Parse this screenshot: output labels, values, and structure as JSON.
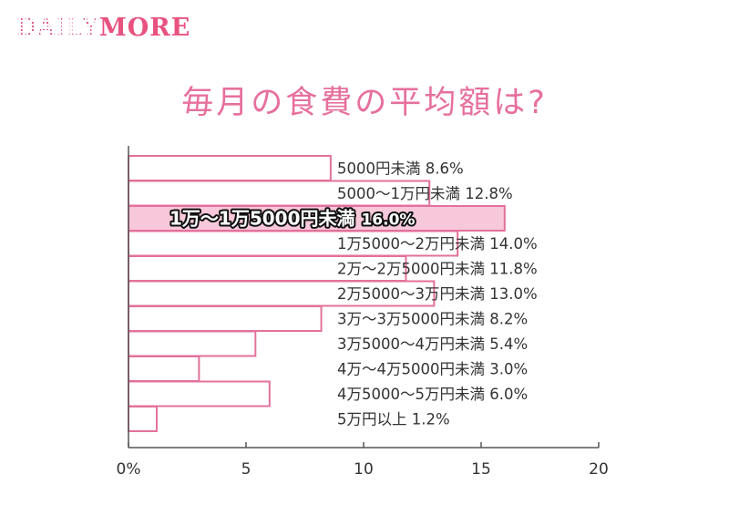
{
  "logo": {
    "daily": "DAILY",
    "more": "MORE"
  },
  "chart_data": {
    "type": "bar",
    "title": "毎月の食費の平均額は?",
    "categories": [
      "5000円未満",
      "5000〜1万円未満",
      "1万〜1万5000円未満",
      "1万5000〜2万円未満",
      "2万〜2万5000円未満",
      "2万5000〜3万円未満",
      "3万〜3万5000円未満",
      "3万5000〜4万円未満",
      "4万〜4万5000円未満",
      "4万5000〜5万円未満",
      "5万円以上"
    ],
    "values": [
      8.6,
      12.8,
      16.0,
      14.0,
      11.8,
      13.0,
      8.2,
      5.4,
      3.0,
      6.0,
      1.2
    ],
    "value_labels": [
      "8.6%",
      "12.8%",
      "16.0%",
      "14.0%",
      "11.8%",
      "13.0%",
      "8.2%",
      "5.4%",
      "3.0%",
      "6.0%",
      "1.2%"
    ],
    "highlight_index": 2,
    "xlim": [
      0,
      20
    ],
    "xticks": [
      0,
      5,
      10,
      15,
      20
    ],
    "xtick_labels": [
      "0%",
      "5",
      "10",
      "15",
      "20"
    ],
    "colors": {
      "bar_border": "#e3719b",
      "bar_fill": "#ffffff",
      "highlight_fill": "#f7c8d9",
      "axis": "#555555",
      "text": "#333333",
      "title": "#e6709c",
      "logo": "#e8527f"
    }
  }
}
